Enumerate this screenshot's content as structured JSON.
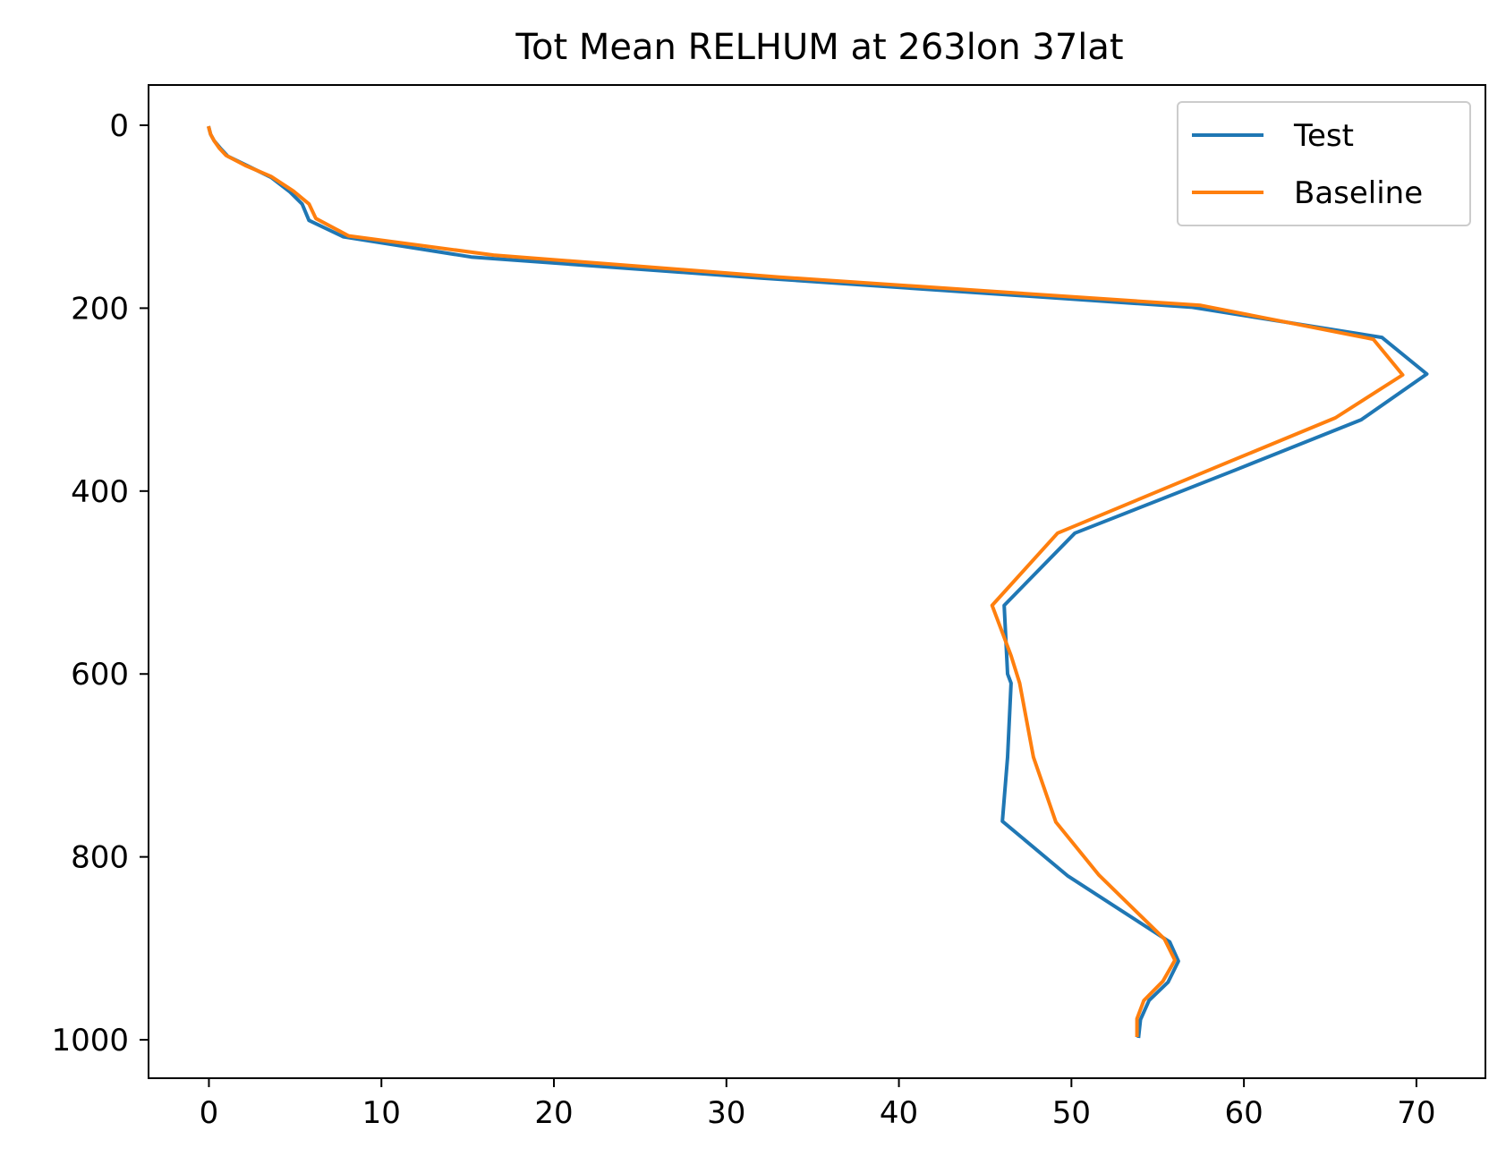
{
  "chart_data": {
    "type": "line",
    "title": "Tot Mean RELHUM at 263lon 37lat",
    "xlabel": "",
    "ylabel": "",
    "xlim": [
      -3.5,
      74
    ],
    "ylim": [
      1042,
      -44
    ],
    "y_inverted": true,
    "xticks": [
      0,
      10,
      20,
      30,
      40,
      50,
      60,
      70
    ],
    "yticks": [
      0,
      200,
      400,
      600,
      800,
      1000
    ],
    "grid": false,
    "legend_position": "upper right",
    "series": [
      {
        "name": "Test",
        "color": "#1f77b4",
        "points": [
          [
            0.0,
            3
          ],
          [
            0.1,
            10
          ],
          [
            0.3,
            17
          ],
          [
            0.7,
            26
          ],
          [
            1.1,
            34
          ],
          [
            2.2,
            44
          ],
          [
            3.6,
            57
          ],
          [
            4.7,
            73
          ],
          [
            5.4,
            86
          ],
          [
            5.8,
            104
          ],
          [
            7.8,
            122
          ],
          [
            15.2,
            144
          ],
          [
            32.0,
            167
          ],
          [
            57.0,
            199
          ],
          [
            68.0,
            232
          ],
          [
            70.6,
            272
          ],
          [
            66.8,
            322
          ],
          [
            59.5,
            377
          ],
          [
            50.2,
            446
          ],
          [
            46.1,
            525
          ],
          [
            46.3,
            600
          ],
          [
            46.5,
            610
          ],
          [
            46.3,
            691
          ],
          [
            46.0,
            761
          ],
          [
            49.8,
            821
          ],
          [
            55.7,
            893
          ],
          [
            56.2,
            914
          ],
          [
            55.6,
            937
          ],
          [
            54.5,
            957
          ],
          [
            54.0,
            978
          ],
          [
            53.9,
            996
          ]
        ]
      },
      {
        "name": "Baseline",
        "color": "#ff7f0e",
        "points": [
          [
            0.0,
            3
          ],
          [
            0.1,
            10
          ],
          [
            0.3,
            17
          ],
          [
            0.6,
            25
          ],
          [
            1.0,
            33
          ],
          [
            2.1,
            44
          ],
          [
            3.6,
            56
          ],
          [
            4.9,
            72
          ],
          [
            5.8,
            86
          ],
          [
            6.2,
            102
          ],
          [
            8.1,
            121
          ],
          [
            16.5,
            142
          ],
          [
            33.0,
            166
          ],
          [
            57.5,
            197
          ],
          [
            67.5,
            234
          ],
          [
            69.2,
            273
          ],
          [
            65.3,
            320
          ],
          [
            58.5,
            373
          ],
          [
            49.2,
            446
          ],
          [
            45.4,
            525
          ],
          [
            46.5,
            580
          ],
          [
            47.0,
            610
          ],
          [
            47.8,
            691
          ],
          [
            49.1,
            762
          ],
          [
            51.6,
            820
          ],
          [
            55.4,
            890
          ],
          [
            56.0,
            913
          ],
          [
            55.3,
            936
          ],
          [
            54.2,
            957
          ],
          [
            53.8,
            977
          ],
          [
            53.8,
            995
          ]
        ]
      }
    ]
  }
}
